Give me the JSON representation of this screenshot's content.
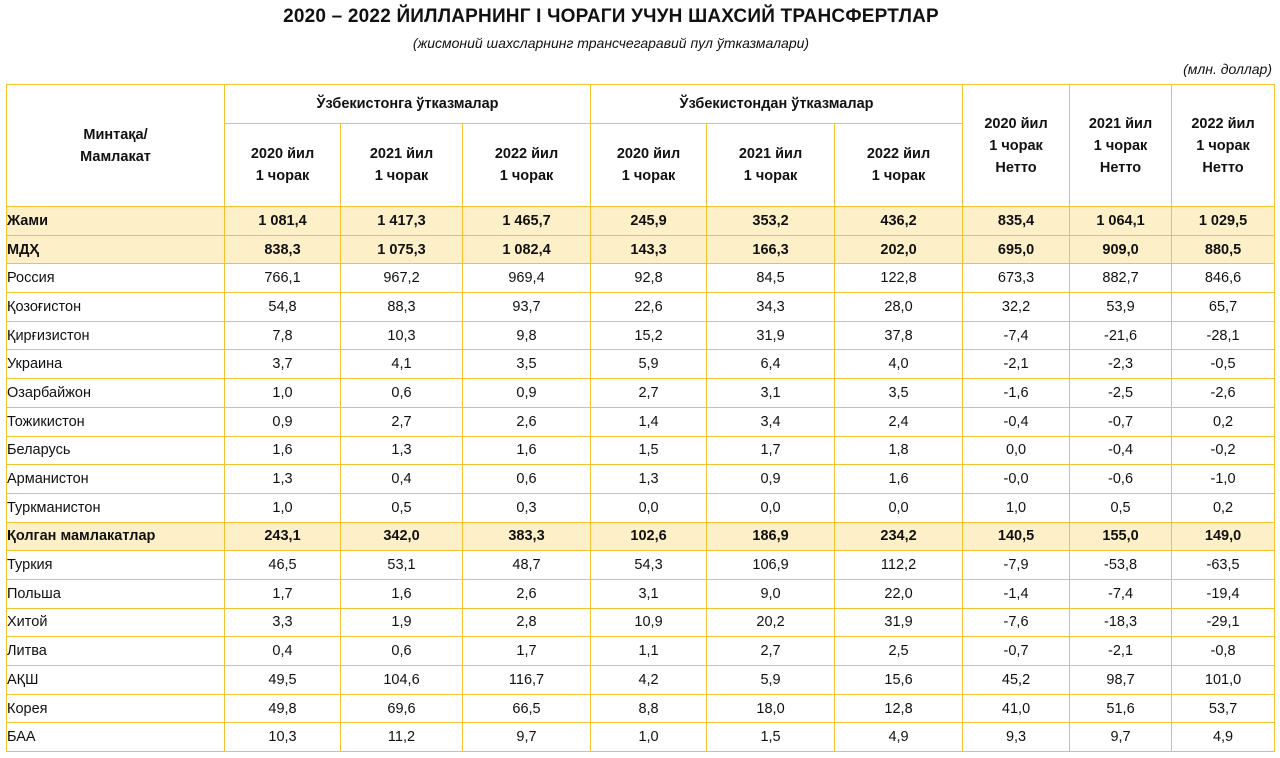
{
  "title": "2020 – 2022 ЙИЛЛАРНИНГ I ЧОРАГИ УЧУН ШАХСИЙ ТРАНСФЕРТЛАР",
  "subtitle": "(жисмоний шахсларнинг трансчегаравий пул ўтказмалари)",
  "unit": "(млн. доллар)",
  "header": {
    "region_label_line1": "Минтақа/",
    "region_label_line2": "Мамлакат",
    "group_in": "Ўзбекистонга ўтказмалар",
    "group_out": "Ўзбекистондан ўтказмалар",
    "years": [
      {
        "year": "2020 йил",
        "quarter": "1 чорак"
      },
      {
        "year": "2021 йил",
        "quarter": "1 чорак"
      },
      {
        "year": "2022 йил",
        "quarter": "1 чорак"
      }
    ],
    "net": [
      {
        "year": "2020 йил",
        "quarter": "1 чорак",
        "label": "Нетто"
      },
      {
        "year": "2021 йил",
        "quarter": "1 чорак",
        "label": "Нетто"
      },
      {
        "year": "2022 йил",
        "quarter": "1 чорак",
        "label": "Нетто"
      }
    ]
  },
  "rows": [
    {
      "name": "Жами",
      "highlight": true,
      "values": [
        "1 081,4",
        "1 417,3",
        "1 465,7",
        "245,9",
        "353,2",
        "436,2",
        "835,4",
        "1 064,1",
        "1 029,5"
      ]
    },
    {
      "name": "МДҲ",
      "highlight": true,
      "values": [
        "838,3",
        "1 075,3",
        "1 082,4",
        "143,3",
        "166,3",
        "202,0",
        "695,0",
        "909,0",
        "880,5"
      ]
    },
    {
      "name": "Россия",
      "highlight": false,
      "values": [
        "766,1",
        "967,2",
        "969,4",
        "92,8",
        "84,5",
        "122,8",
        "673,3",
        "882,7",
        "846,6"
      ]
    },
    {
      "name": "Қозоғистон",
      "highlight": false,
      "values": [
        "54,8",
        "88,3",
        "93,7",
        "22,6",
        "34,3",
        "28,0",
        "32,2",
        "53,9",
        "65,7"
      ]
    },
    {
      "name": "Қирғизистон",
      "highlight": false,
      "values": [
        "7,8",
        "10,3",
        "9,8",
        "15,2",
        "31,9",
        "37,8",
        "-7,4",
        "-21,6",
        "-28,1"
      ]
    },
    {
      "name": "Украина",
      "highlight": false,
      "values": [
        "3,7",
        "4,1",
        "3,5",
        "5,9",
        "6,4",
        "4,0",
        "-2,1",
        "-2,3",
        "-0,5"
      ]
    },
    {
      "name": "Озарбайжон",
      "highlight": false,
      "values": [
        "1,0",
        "0,6",
        "0,9",
        "2,7",
        "3,1",
        "3,5",
        "-1,6",
        "-2,5",
        "-2,6"
      ]
    },
    {
      "name": "Тожикистон",
      "highlight": false,
      "values": [
        "0,9",
        "2,7",
        "2,6",
        "1,4",
        "3,4",
        "2,4",
        "-0,4",
        "-0,7",
        "0,2"
      ]
    },
    {
      "name": "Беларусь",
      "highlight": false,
      "values": [
        "1,6",
        "1,3",
        "1,6",
        "1,5",
        "1,7",
        "1,8",
        "0,0",
        "-0,4",
        "-0,2"
      ]
    },
    {
      "name": "Арманистон",
      "highlight": false,
      "values": [
        "1,3",
        "0,4",
        "0,6",
        "1,3",
        "0,9",
        "1,6",
        "-0,0",
        "-0,6",
        "-1,0"
      ]
    },
    {
      "name": "Туркманистон",
      "highlight": false,
      "values": [
        "1,0",
        "0,5",
        "0,3",
        "0,0",
        "0,0",
        "0,0",
        "1,0",
        "0,5",
        "0,2"
      ]
    },
    {
      "name": "Қолган мамлакатлар",
      "highlight": true,
      "values": [
        "243,1",
        "342,0",
        "383,3",
        "102,6",
        "186,9",
        "234,2",
        "140,5",
        "155,0",
        "149,0"
      ]
    },
    {
      "name": "Туркия",
      "highlight": false,
      "values": [
        "46,5",
        "53,1",
        "48,7",
        "54,3",
        "106,9",
        "112,2",
        "-7,9",
        "-53,8",
        "-63,5"
      ]
    },
    {
      "name": "Польша",
      "highlight": false,
      "values": [
        "1,7",
        "1,6",
        "2,6",
        "3,1",
        "9,0",
        "22,0",
        "-1,4",
        "-7,4",
        "-19,4"
      ]
    },
    {
      "name": "Хитой",
      "highlight": false,
      "values": [
        "3,3",
        "1,9",
        "2,8",
        "10,9",
        "20,2",
        "31,9",
        "-7,6",
        "-18,3",
        "-29,1"
      ]
    },
    {
      "name": "Литва",
      "highlight": false,
      "values": [
        "0,4",
        "0,6",
        "1,7",
        "1,1",
        "2,7",
        "2,5",
        "-0,7",
        "-2,1",
        "-0,8"
      ]
    },
    {
      "name": "АҚШ",
      "highlight": false,
      "values": [
        "49,5",
        "104,6",
        "116,7",
        "4,2",
        "5,9",
        "15,6",
        "45,2",
        "98,7",
        "101,0"
      ]
    },
    {
      "name": "Корея",
      "highlight": false,
      "values": [
        "49,8",
        "69,6",
        "66,5",
        "8,8",
        "18,0",
        "12,8",
        "41,0",
        "51,6",
        "53,7"
      ]
    },
    {
      "name": "БАА",
      "highlight": false,
      "values": [
        "10,3",
        "11,2",
        "9,7",
        "1,0",
        "1,5",
        "4,9",
        "9,3",
        "9,7",
        "4,9"
      ]
    }
  ]
}
